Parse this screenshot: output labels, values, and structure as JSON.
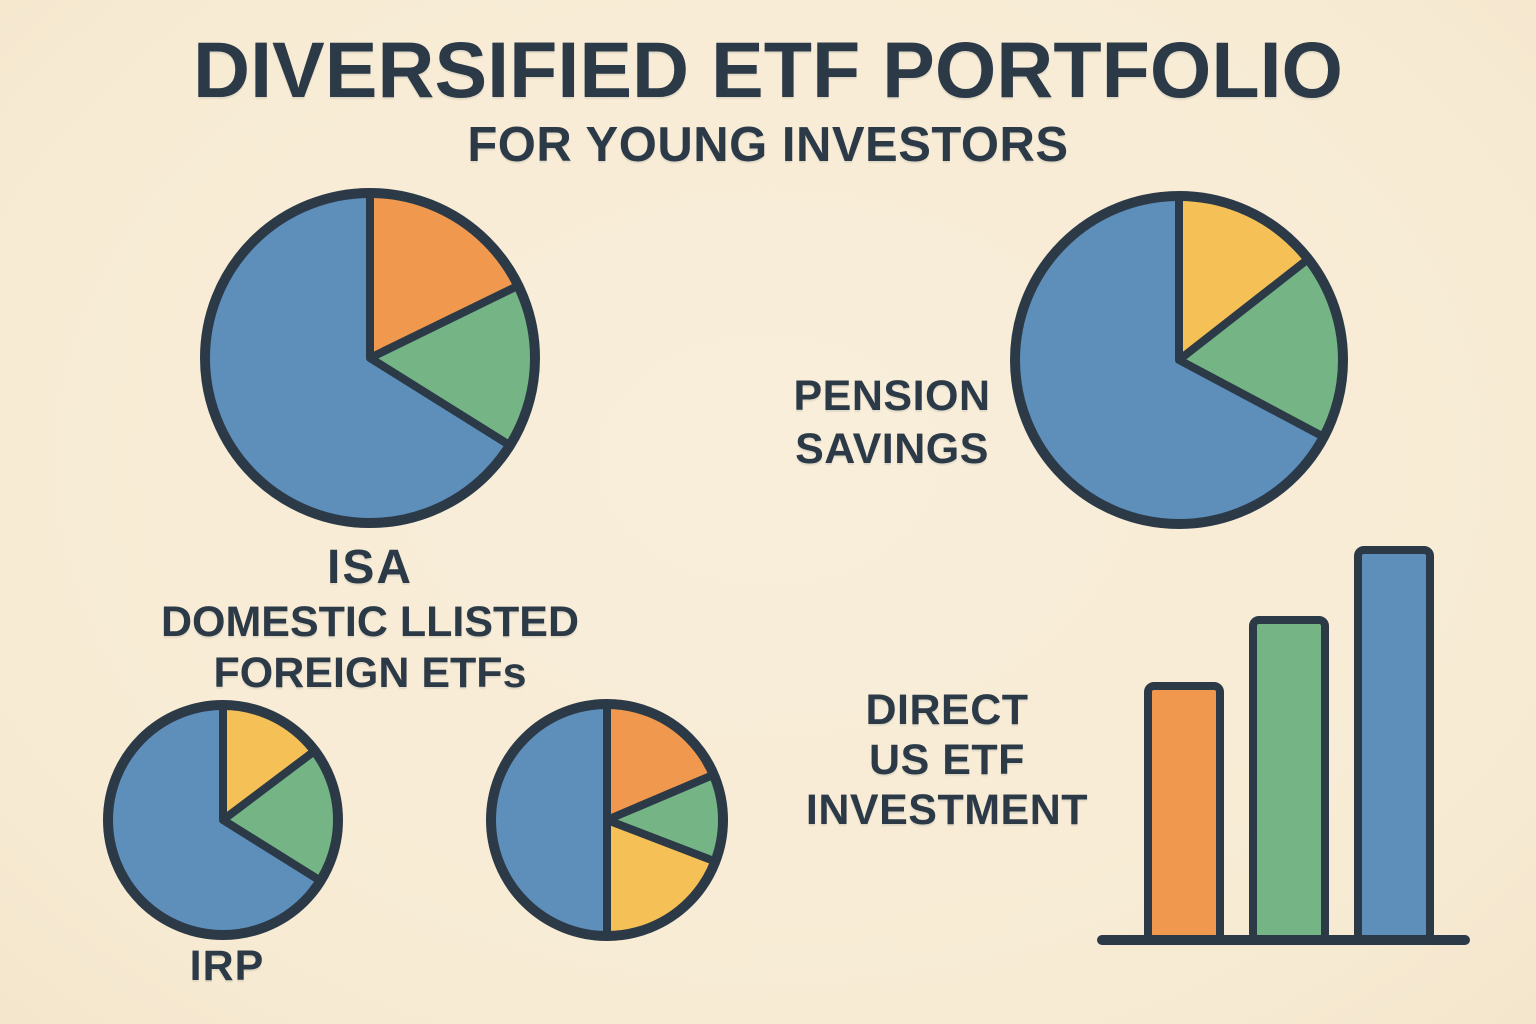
{
  "title": "DIVERSIFIED ETF PORTFOLIO",
  "subtitle": "FOR YOUNG INVESTORS",
  "colors": {
    "background": "#F8EDD9",
    "ink": "#2C3A48",
    "blue": "#5E8EBA",
    "orange": "#F0994E",
    "green": "#74B485",
    "yellow": "#F5C156"
  },
  "labels": {
    "isa": {
      "line1": "ISA",
      "line2": "DOMESTIC LLISTED",
      "line3": "FOREIGN ETFs"
    },
    "pension": {
      "line1": "PENSION",
      "line2": "SAVINGS"
    },
    "irp": "IRP",
    "direct": {
      "line1": "DIRECT",
      "line2": "US ETF",
      "line3": "INVESTMENT"
    }
  },
  "chart_data": [
    {
      "id": "isa",
      "type": "pie",
      "title": "ISA — DOMESTIC LLISTED FOREIGN ETFs",
      "legend": "none shown; slices unlabeled in image",
      "slices": [
        {
          "color": "orange",
          "start_deg": 0,
          "end_deg": 64,
          "pct": 17.8
        },
        {
          "color": "green",
          "start_deg": 64,
          "end_deg": 122,
          "pct": 16.1
        },
        {
          "color": "blue",
          "start_deg": 122,
          "end_deg": 360,
          "pct": 66.1
        }
      ]
    },
    {
      "id": "pension",
      "type": "pie",
      "title": "PENSION SAVINGS",
      "legend": "none shown; slices unlabeled in image",
      "slices": [
        {
          "color": "yellow",
          "start_deg": 0,
          "end_deg": 52,
          "pct": 14.4
        },
        {
          "color": "green",
          "start_deg": 52,
          "end_deg": 118,
          "pct": 18.3
        },
        {
          "color": "blue",
          "start_deg": 118,
          "end_deg": 360,
          "pct": 67.3
        }
      ]
    },
    {
      "id": "irp",
      "type": "pie",
      "title": "IRP",
      "legend": "none shown; slices unlabeled in image",
      "slices": [
        {
          "color": "yellow",
          "start_deg": 0,
          "end_deg": 53,
          "pct": 14.7
        },
        {
          "color": "green",
          "start_deg": 53,
          "end_deg": 122,
          "pct": 19.2
        },
        {
          "color": "blue",
          "start_deg": 122,
          "end_deg": 360,
          "pct": 66.1
        }
      ]
    },
    {
      "id": "mixed",
      "type": "pie",
      "title": "untitled pie (bottom center, no caption in image)",
      "legend": "none shown; slices unlabeled in image",
      "slices": [
        {
          "color": "orange",
          "start_deg": 0,
          "end_deg": 67,
          "pct": 18.6
        },
        {
          "color": "green",
          "start_deg": 67,
          "end_deg": 111,
          "pct": 12.2
        },
        {
          "color": "yellow",
          "start_deg": 111,
          "end_deg": 180,
          "pct": 19.2
        },
        {
          "color": "blue",
          "start_deg": 180,
          "end_deg": 360,
          "pct": 50.0
        }
      ]
    },
    {
      "id": "bars",
      "type": "bar",
      "title": "DIRECT US ETF INVESTMENT",
      "xlabel": "",
      "ylabel": "",
      "axis_note": "baseline only; no ticks, gridlines or value labels shown",
      "bars": [
        {
          "color": "orange",
          "relative_height": 0.65
        },
        {
          "color": "green",
          "relative_height": 0.82
        },
        {
          "color": "blue",
          "relative_height": 1.0
        }
      ]
    }
  ]
}
